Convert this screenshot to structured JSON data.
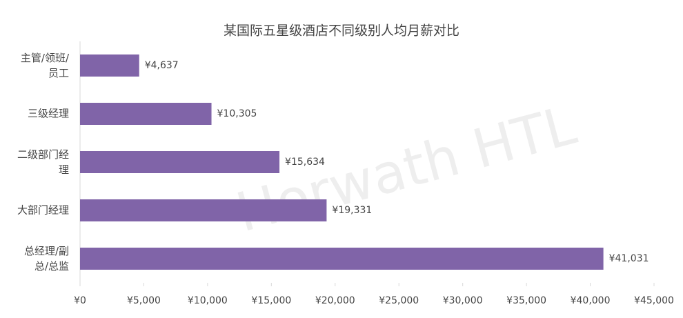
{
  "chart_data": {
    "type": "hbar",
    "title": "某国际五星级酒店不同级别人均月薪对比",
    "watermark": "Horwath HTL",
    "categories": [
      "主管/领班/员工",
      "三级经理",
      "二级部门经理",
      "大部门经理",
      "总经理/副总/总监"
    ],
    "values": [
      4637,
      10305,
      15634,
      19331,
      41031
    ],
    "value_labels": [
      "¥4,637",
      "¥10,305",
      "¥15,634",
      "¥19,331",
      "¥41,031"
    ],
    "color": "#8064a8",
    "xlim": [
      0,
      45000
    ],
    "xticks": [
      {
        "value": 0,
        "label": "¥0"
      },
      {
        "value": 5000,
        "label": "¥5,000"
      },
      {
        "value": 10000,
        "label": "¥10,000"
      },
      {
        "value": 15000,
        "label": "¥15,000"
      },
      {
        "value": 20000,
        "label": "¥20,000"
      },
      {
        "value": 25000,
        "label": "¥25,000"
      },
      {
        "value": 30000,
        "label": "¥30,000"
      },
      {
        "value": 35000,
        "label": "¥35,000"
      },
      {
        "value": 40000,
        "label": "¥40,000"
      },
      {
        "value": 45000,
        "label": "¥45,000"
      }
    ],
    "grid": false
  }
}
